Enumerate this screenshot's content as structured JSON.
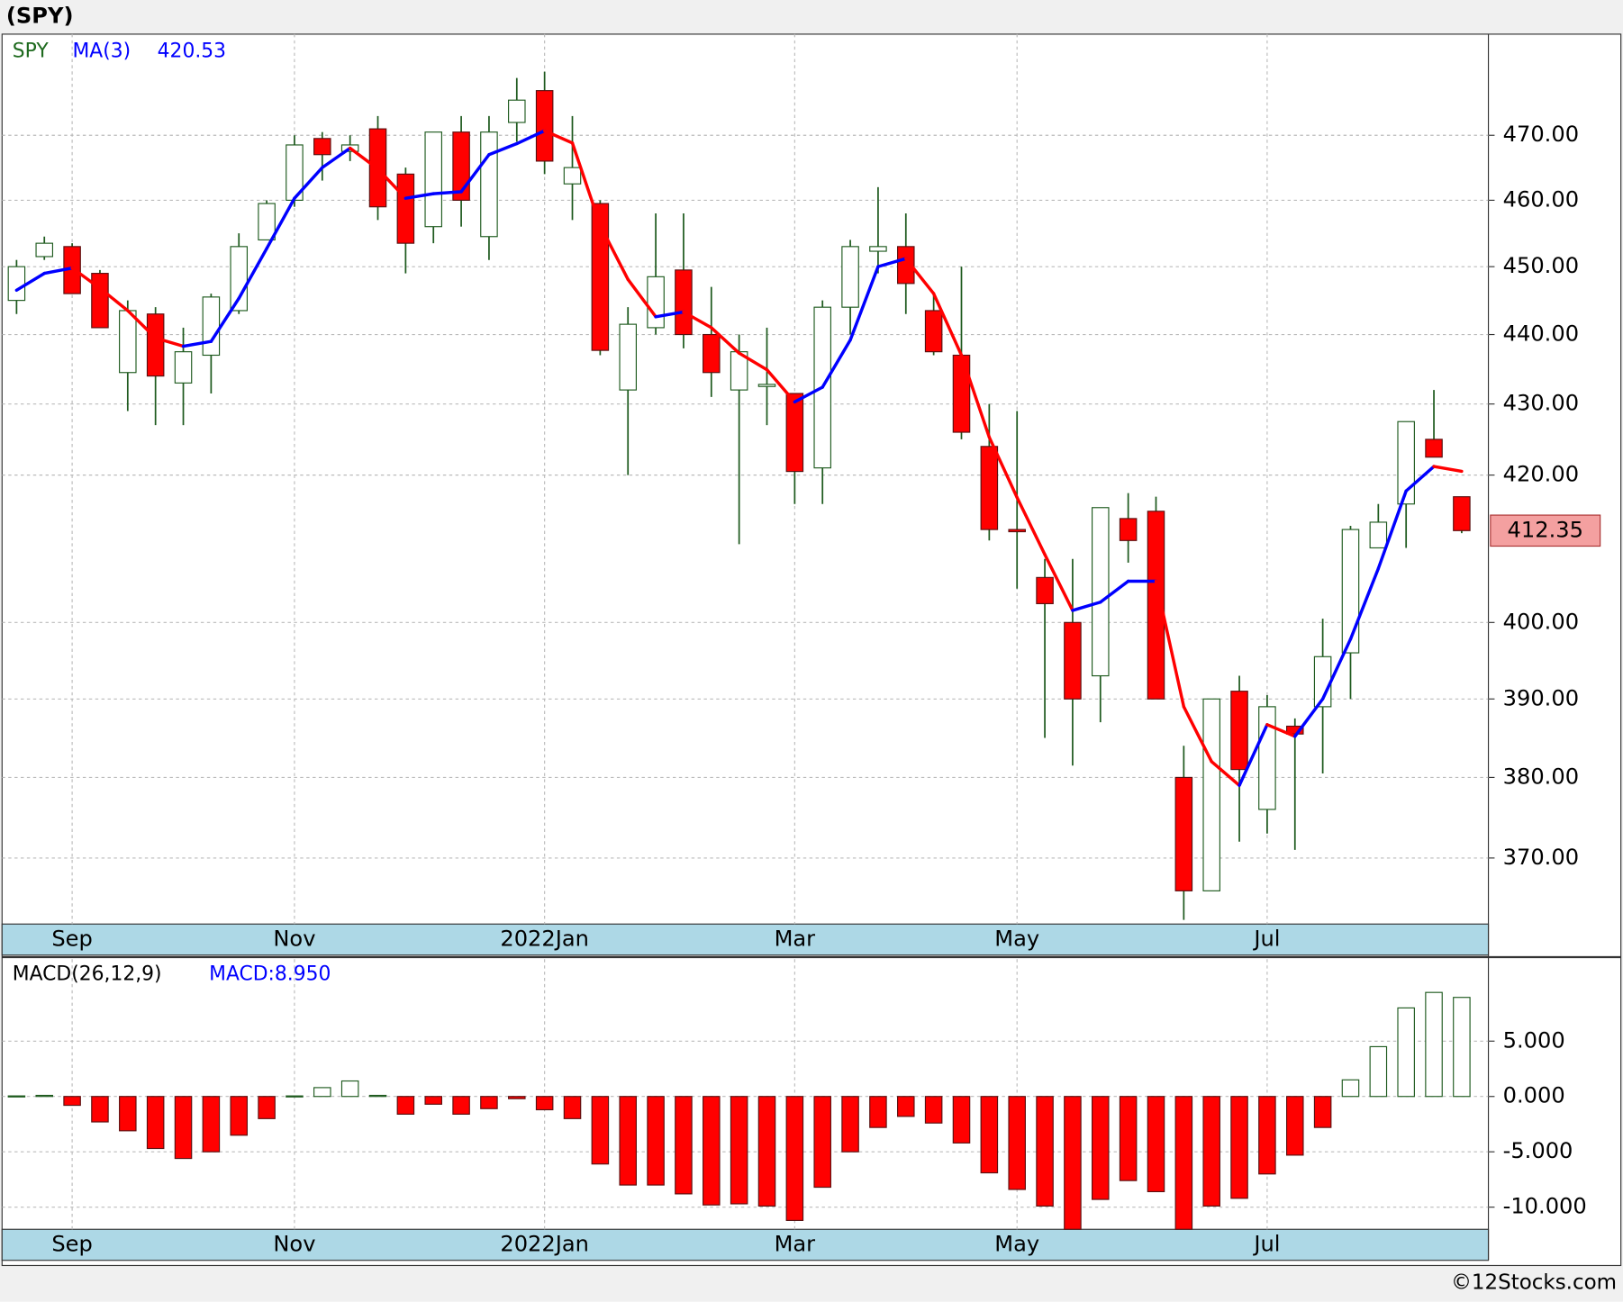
{
  "footer": "©12Stocks.com",
  "chart_data": [
    {
      "type": "candlestick",
      "title": "(SPY)",
      "name": "SPY",
      "log_scale": true,
      "grid": true,
      "categories": [
        null,
        null,
        "Sep",
        null,
        null,
        null,
        null,
        null,
        null,
        null,
        "Nov",
        null,
        null,
        null,
        null,
        null,
        null,
        null,
        null,
        "2022Jan",
        null,
        null,
        null,
        null,
        null,
        null,
        null,
        null,
        "Mar",
        null,
        null,
        null,
        null,
        null,
        null,
        null,
        "May",
        null,
        null,
        null,
        null,
        null,
        null,
        null,
        null,
        "Jul",
        null,
        null,
        null,
        null,
        null,
        null,
        null
      ],
      "open": [
        445,
        451.5,
        453,
        449,
        434.5,
        443,
        433,
        437,
        443.5,
        454,
        460,
        469.5,
        467.5,
        471,
        464,
        456,
        470.5,
        454.5,
        472,
        477,
        462.5,
        459.5,
        432,
        441,
        449.5,
        440,
        432,
        432.5,
        431.5,
        421,
        444,
        452.3,
        453,
        443.5,
        437,
        424,
        412.5,
        406,
        400,
        393,
        414,
        415,
        380,
        366,
        391,
        376,
        386.5,
        389,
        396,
        410,
        416,
        425,
        417
      ],
      "high": [
        451,
        454.5,
        453.5,
        449.5,
        445,
        444,
        441,
        446,
        455,
        460,
        470,
        470.5,
        470,
        473,
        465,
        470.5,
        473,
        473,
        479,
        480,
        473,
        460,
        444,
        458,
        458,
        447,
        440,
        441,
        431.5,
        445,
        454,
        462,
        458,
        446,
        450,
        430,
        429,
        408.5,
        408.5,
        415.5,
        417.5,
        417,
        384,
        390,
        393,
        390.5,
        387.5,
        400.5,
        413,
        416,
        427.5,
        432,
        417
      ],
      "low": [
        443,
        451,
        446,
        441,
        429,
        427,
        427,
        431.5,
        443,
        454,
        459,
        463,
        466,
        457,
        449,
        453.5,
        456,
        451,
        469,
        464,
        457,
        437,
        420,
        440,
        438,
        431,
        410.5,
        427,
        416,
        416,
        440,
        449,
        443,
        437,
        425,
        411,
        404.5,
        385,
        381.5,
        387,
        408,
        390,
        362.5,
        366,
        372,
        373,
        371,
        380.5,
        390,
        410,
        410,
        422.5,
        412
      ],
      "close": [
        450,
        453.5,
        446,
        441,
        443.5,
        434,
        437.5,
        445.5,
        453,
        459.5,
        468.5,
        467,
        468.5,
        459,
        453.5,
        470.5,
        460,
        470.5,
        475.5,
        466,
        465,
        437.7,
        441.5,
        448.5,
        440,
        434.5,
        437.5,
        432.8,
        420.5,
        444,
        453,
        453,
        447.5,
        437.5,
        426,
        412.5,
        412.2,
        402.5,
        390,
        415.5,
        411,
        390,
        366,
        390,
        381,
        389,
        385.5,
        395.5,
        412.5,
        413.5,
        427.5,
        422.5,
        412.35
      ],
      "up_color": "#ffffff",
      "down_color": "#ff0000",
      "outline_color": "#1e5a1e",
      "ma": {
        "name": "MA(3)",
        "up_color": "#0000ff",
        "down_color": "#ff0000",
        "values": [
          446.5,
          449,
          449.8,
          446.8,
          443.5,
          439.5,
          438.3,
          439,
          445.3,
          452.7,
          460.3,
          465,
          468,
          464.8,
          460.3,
          461,
          461.3,
          467,
          468.7,
          470.7,
          468.8,
          456.2,
          448.1,
          442.6,
          443.3,
          441,
          437.3,
          434.9,
          430.3,
          432.4,
          439.2,
          450,
          451.2,
          446,
          437,
          425.3,
          416.9,
          409.1,
          401.6,
          402.7,
          405.5,
          405.5,
          389,
          382,
          379,
          386.7,
          385.2,
          390,
          397.8,
          407.2,
          417.8,
          421.2,
          420.53
        ]
      },
      "ylim": [
        362,
        486
      ],
      "yticks": [
        {
          "value": 370,
          "label": "370.00"
        },
        {
          "value": 380,
          "label": "380.00"
        },
        {
          "value": 390,
          "label": "390.00"
        },
        {
          "value": 400,
          "label": "400.00"
        },
        {
          "value": 420,
          "label": "420.00"
        },
        {
          "value": 430,
          "label": "430.00"
        },
        {
          "value": 440,
          "label": "440.00"
        },
        {
          "value": 450,
          "label": "450.00"
        },
        {
          "value": 460,
          "label": "460.00"
        },
        {
          "value": 470,
          "label": "470.00"
        }
      ]
    },
    {
      "type": "bar",
      "title": "MACD(26,12,9)",
      "subtitle": "MACD:8.950",
      "grid": true,
      "categories": [
        null,
        null,
        "Sep",
        null,
        null,
        null,
        null,
        null,
        null,
        null,
        "Nov",
        null,
        null,
        null,
        null,
        null,
        null,
        null,
        null,
        "2022Jan",
        null,
        null,
        null,
        null,
        null,
        null,
        null,
        null,
        "Mar",
        null,
        null,
        null,
        null,
        null,
        null,
        null,
        "May",
        null,
        null,
        null,
        null,
        null,
        null,
        null,
        null,
        "Jul",
        null,
        null,
        null,
        null,
        null,
        null,
        null
      ],
      "values": [
        0.05,
        0.1,
        -0.8,
        -2.3,
        -3.1,
        -4.7,
        -5.6,
        -5,
        -3.5,
        -2,
        0.05,
        0.8,
        1.4,
        0.1,
        -1.6,
        -0.7,
        -1.6,
        -1.1,
        -0.2,
        -1.2,
        -2,
        -6.1,
        -8,
        -8,
        -8.8,
        -9.8,
        -9.7,
        -9.9,
        -11.2,
        -8.2,
        -5,
        -2.8,
        -1.8,
        -2.4,
        -4.2,
        -6.9,
        -8.4,
        -9.9,
        -12,
        -9.3,
        -7.6,
        -8.6,
        -12,
        -9.9,
        -9.2,
        -7,
        -5.3,
        -2.8,
        1.5,
        4.5,
        8,
        9.4,
        8.95
      ],
      "positive_color": "#1e5a1e",
      "negative_color": "#ff0000",
      "ylim": [
        -12,
        12.4
      ],
      "yticks": [
        {
          "value": -10,
          "label": "-10.000"
        },
        {
          "value": -5,
          "label": "-5.000"
        },
        {
          "value": 0,
          "label": "0.000"
        },
        {
          "value": 5,
          "label": "5.000"
        }
      ]
    }
  ]
}
